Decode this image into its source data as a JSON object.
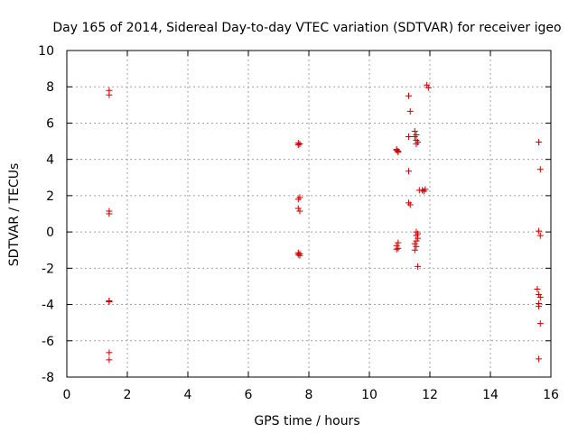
{
  "chart_data": {
    "type": "scatter",
    "title": "Day 165 of 2014, Sidereal Day-to-day VTEC variation (SDTVAR) for receiver igeo",
    "xlabel": "GPS time / hours",
    "ylabel": "SDTVAR / TECUs",
    "xlim": [
      0,
      16
    ],
    "ylim": [
      -8,
      10
    ],
    "xticks": [
      0,
      2,
      4,
      6,
      8,
      10,
      12,
      14,
      16
    ],
    "yticks": [
      -8,
      -6,
      -4,
      -2,
      0,
      2,
      4,
      6,
      8,
      10
    ],
    "xtick_labels": [
      "0",
      "2",
      "4",
      "6",
      "8",
      "10",
      "12",
      "14",
      "16"
    ],
    "ytick_labels": [
      "-8",
      "-6",
      "-4",
      "-2",
      "0",
      "2",
      "4",
      "6",
      "8",
      "10"
    ],
    "grid": true,
    "marker": "+",
    "color": "#cc0000",
    "series": [
      {
        "name": "SDTVAR",
        "x": [
          1.4,
          1.4,
          1.4,
          1.4,
          1.4,
          1.4,
          1.4,
          1.4,
          1.4,
          7.65,
          7.7,
          7.65,
          7.7,
          7.65,
          7.65,
          7.7,
          7.65,
          7.7,
          7.65,
          7.7,
          10.9,
          10.95,
          10.9,
          10.95,
          10.9,
          10.95,
          10.9,
          10.95,
          11.3,
          11.35,
          11.3,
          11.3,
          11.35,
          11.3,
          11.5,
          11.55,
          11.5,
          11.55,
          11.6,
          11.55,
          11.55,
          11.6,
          11.55,
          11.6,
          11.55,
          11.5,
          11.55,
          11.5,
          11.6,
          11.65,
          11.75,
          11.8,
          11.85,
          11.9,
          11.95,
          15.6,
          15.65,
          15.6,
          15.65,
          15.55,
          15.6,
          15.65,
          15.6,
          15.6,
          15.65,
          15.6
        ],
        "y": [
          7.8,
          7.55,
          1.15,
          1.0,
          -3.8,
          -3.85,
          -6.65,
          -7.05,
          -3.8,
          4.9,
          4.85,
          4.8,
          1.9,
          1.8,
          1.3,
          1.15,
          -1.15,
          -1.3,
          -1.25,
          -1.2,
          4.55,
          4.45,
          4.5,
          -0.6,
          -0.75,
          -0.9,
          -0.95,
          4.4,
          7.5,
          6.65,
          5.25,
          3.35,
          1.5,
          1.6,
          5.55,
          5.35,
          5.25,
          5.05,
          4.95,
          4.85,
          0.0,
          -0.1,
          -0.2,
          -0.35,
          -0.5,
          -0.65,
          -0.8,
          -1.0,
          -1.9,
          2.3,
          2.3,
          2.25,
          2.35,
          8.1,
          7.95,
          4.95,
          3.45,
          0.05,
          -0.2,
          -3.15,
          -3.45,
          -3.6,
          -3.95,
          -4.1,
          -5.05,
          -7.0
        ]
      }
    ]
  }
}
